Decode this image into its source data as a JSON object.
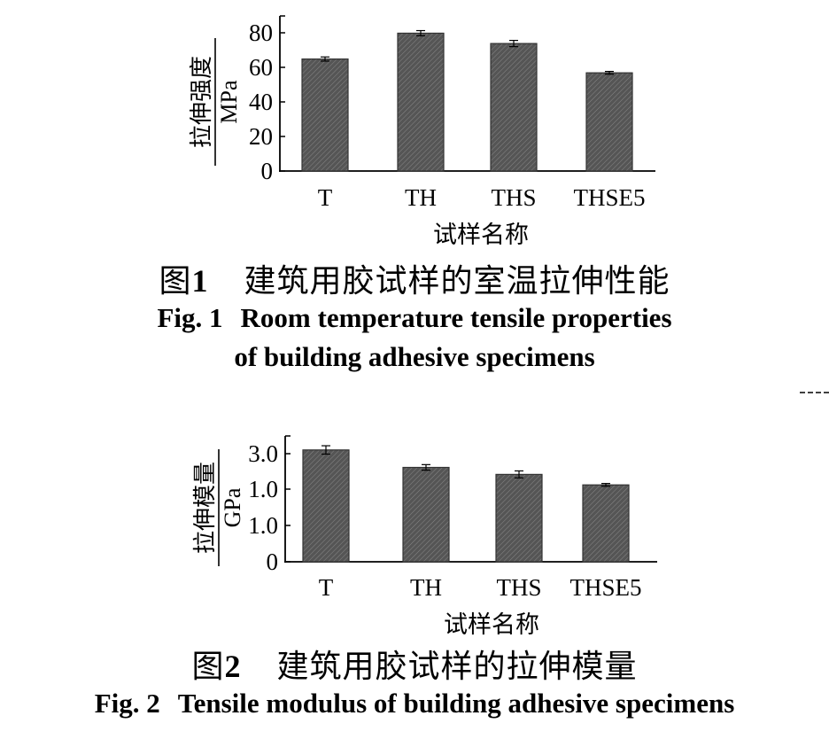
{
  "chart_data": [
    {
      "type": "bar",
      "categories": [
        "T",
        "TH",
        "THS",
        "THSE5"
      ],
      "values": [
        65,
        80,
        74,
        57
      ],
      "errors": [
        1.2,
        1.5,
        1.8,
        0.8
      ],
      "ylim": [
        0,
        90
      ],
      "yticks": [
        "0",
        "20",
        "40",
        "60",
        "80"
      ],
      "ylabel_top": "拉伸强度",
      "ylabel_bottom": "MPa",
      "xlabel": "试样名称",
      "bar_color": "#555555"
    },
    {
      "type": "bar",
      "categories": [
        "T",
        "TH",
        "THS",
        "THSE5"
      ],
      "values": [
        3.2,
        2.7,
        2.5,
        2.2
      ],
      "errors": [
        0.12,
        0.08,
        0.1,
        0.04
      ],
      "ylim": [
        0,
        3.6
      ],
      "yticks": [
        "0",
        "1.0",
        "1.0",
        "3.0"
      ],
      "ylabel_top": "拉伸模量",
      "ylabel_bottom": "GPa",
      "xlabel": "试样名称",
      "bar_color": "#555555"
    }
  ],
  "figures": [
    {
      "caption_cn_label": "图",
      "caption_cn_num": "1",
      "caption_cn": "建筑用胶试样的室温拉伸性能",
      "caption_en_num": "Fig. 1",
      "caption_en_line1": "Room temperature tensile properties",
      "caption_en_line2": "of building adhesive specimens"
    },
    {
      "caption_cn_label": "图",
      "caption_cn_num": "2",
      "caption_cn": "建筑用胶试样的拉伸模量",
      "caption_en_num": "Fig. 2",
      "caption_en_line1": "Tensile modulus of building adhesive specimens"
    }
  ]
}
